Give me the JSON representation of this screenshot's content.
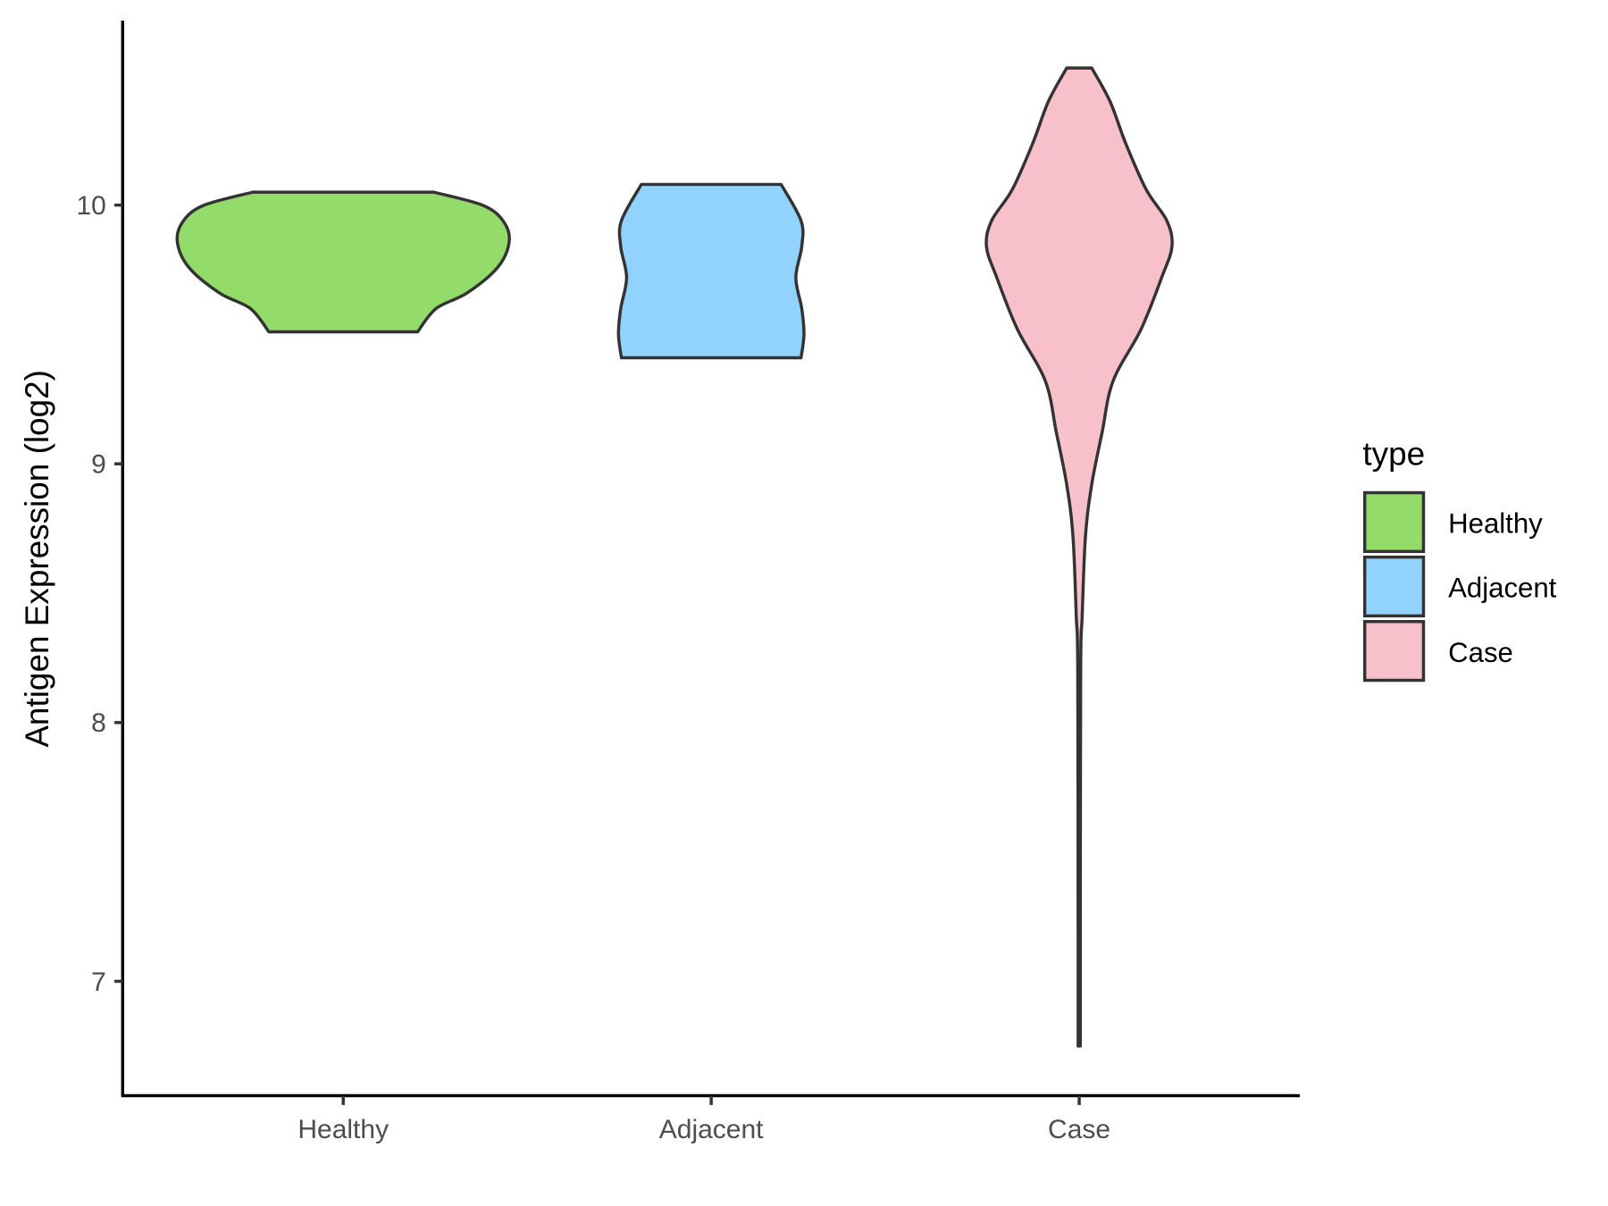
{
  "chart_data": {
    "type": "violin",
    "title": "",
    "xlabel": "",
    "ylabel": "Antigen Expression (log2)",
    "ylim": [
      6.55,
      10.7
    ],
    "yticks": [
      "7",
      "8",
      "9",
      "10"
    ],
    "ytick_values": [
      7,
      8,
      9,
      10
    ],
    "categories": [
      "Healthy",
      "Adjacent",
      "Case"
    ],
    "grid": false,
    "legend": {
      "title": "type",
      "placement": "right",
      "entries": [
        "Healthy",
        "Adjacent",
        "Case"
      ]
    },
    "series": [
      {
        "name": "Healthy",
        "color": "#93dc6a",
        "profile_value_halfwidth": [
          [
            10.05,
            0.246
          ],
          [
            10.0,
            0.378
          ],
          [
            9.94,
            0.434
          ],
          [
            9.86,
            0.451
          ],
          [
            9.76,
            0.42
          ],
          [
            9.66,
            0.336
          ],
          [
            9.6,
            0.252
          ],
          [
            9.51,
            0.202
          ]
        ]
      },
      {
        "name": "Adjacent",
        "color": "#92d3fd",
        "profile_value_halfwidth": [
          [
            10.08,
            0.19
          ],
          [
            9.94,
            0.244
          ],
          [
            9.84,
            0.246
          ],
          [
            9.72,
            0.23
          ],
          [
            9.6,
            0.246
          ],
          [
            9.5,
            0.252
          ],
          [
            9.41,
            0.244
          ]
        ]
      },
      {
        "name": "Case",
        "color": "#f7c0cb",
        "profile_value_halfwidth": [
          [
            10.53,
            0.034
          ],
          [
            10.4,
            0.084
          ],
          [
            10.24,
            0.126
          ],
          [
            10.06,
            0.182
          ],
          [
            9.94,
            0.238
          ],
          [
            9.84,
            0.252
          ],
          [
            9.72,
            0.224
          ],
          [
            9.52,
            0.168
          ],
          [
            9.32,
            0.092
          ],
          [
            9.12,
            0.062
          ],
          [
            8.92,
            0.034
          ],
          [
            8.72,
            0.017
          ],
          [
            8.41,
            0.008
          ],
          [
            8.21,
            0.004
          ],
          [
            7.21,
            0.003
          ],
          [
            6.81,
            0.003
          ],
          [
            6.75,
            0.003
          ]
        ]
      }
    ]
  }
}
